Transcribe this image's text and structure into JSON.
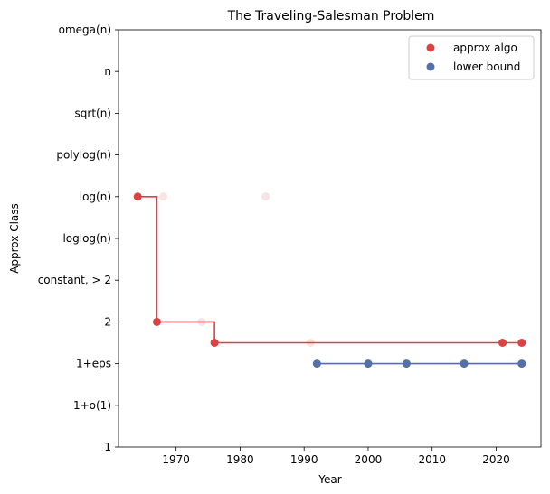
{
  "chart_data": {
    "type": "scatter",
    "title": "The Traveling-Salesman Problem",
    "xlabel": "Year",
    "ylabel": "Approx Class",
    "xlim": [
      1961,
      2027
    ],
    "x_ticks": [
      1970,
      1980,
      1990,
      2000,
      2010,
      2020
    ],
    "y_categories": [
      "1",
      "1+o(1)",
      "1+eps",
      "2",
      "constant, > 2",
      "loglog(n)",
      "log(n)",
      "polylog(n)",
      "sqrt(n)",
      "n",
      "omega(n)"
    ],
    "grid": false,
    "legend_position": "top-right",
    "series": [
      {
        "name": "approx algo",
        "color": "#d94343",
        "points": [
          {
            "x": 1964,
            "y": 6,
            "faded": false
          },
          {
            "x": 1968,
            "y": 6,
            "faded": true
          },
          {
            "x": 1984,
            "y": 6,
            "faded": true
          },
          {
            "x": 1967,
            "y": 3,
            "faded": false
          },
          {
            "x": 1974,
            "y": 3,
            "faded": true
          },
          {
            "x": 1976,
            "y": 2.5,
            "faded": false
          },
          {
            "x": 1991,
            "y": 2.5,
            "faded": true
          },
          {
            "x": 2021,
            "y": 2.5,
            "faded": false
          },
          {
            "x": 2024,
            "y": 2.5,
            "faded": false
          }
        ],
        "step": [
          [
            1964,
            6
          ],
          [
            1967,
            6
          ],
          [
            1967,
            3
          ],
          [
            1976,
            3
          ],
          [
            1976,
            2.5
          ],
          [
            2024,
            2.5
          ]
        ]
      },
      {
        "name": "lower bound",
        "color": "#5470a8",
        "points": [
          {
            "x": 1992,
            "y": 2,
            "faded": false
          },
          {
            "x": 2000,
            "y": 2,
            "faded": false
          },
          {
            "x": 2006,
            "y": 2,
            "faded": false
          },
          {
            "x": 2015,
            "y": 2,
            "faded": false
          },
          {
            "x": 2024,
            "y": 2,
            "faded": false
          }
        ],
        "step": [
          [
            1992,
            2
          ],
          [
            2024,
            2
          ]
        ]
      }
    ]
  }
}
